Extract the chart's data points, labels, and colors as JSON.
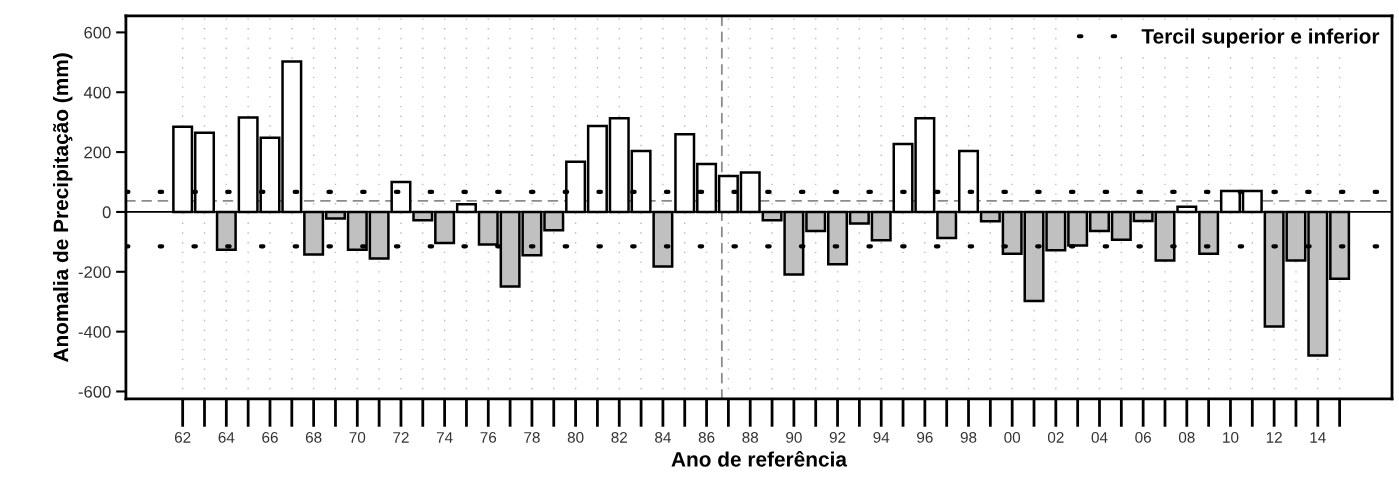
{
  "chart_data": {
    "type": "bar",
    "xlabel": "Ano de referência",
    "ylabel": "Anomalia de Precipitação (mm)",
    "x": [
      1962,
      1963,
      1964,
      1965,
      1966,
      1967,
      1968,
      1969,
      1970,
      1971,
      1972,
      1973,
      1974,
      1975,
      1976,
      1977,
      1978,
      1979,
      1980,
      1981,
      1982,
      1983,
      1984,
      1985,
      1986,
      1987,
      1988,
      1989,
      1990,
      1991,
      1992,
      1993,
      1994,
      1995,
      1996,
      1997,
      1998,
      1999,
      2000,
      2001,
      2002,
      2003,
      2004,
      2005,
      2006,
      2007,
      2008,
      2009,
      2010,
      2011,
      2012,
      2013,
      2014,
      2015
    ],
    "values": [
      285,
      265,
      -126,
      316,
      248,
      503,
      -142,
      -22,
      -126,
      -156,
      100,
      -28,
      -104,
      26,
      -109,
      -249,
      -145,
      -61,
      168,
      287,
      313,
      204,
      -182,
      260,
      160,
      120,
      132,
      -28,
      -209,
      -64,
      -175,
      -39,
      -95,
      227,
      313,
      -87,
      204,
      -31,
      -140,
      -298,
      -128,
      -112,
      -64,
      -93,
      -30,
      -162,
      17,
      -140,
      70,
      70,
      -383,
      -162,
      -480,
      -223
    ],
    "colors": [
      "#ffffff",
      "#ffffff",
      "#c0c0c0",
      "#ffffff",
      "#ffffff",
      "#ffffff",
      "#c0c0c0",
      "#c0c0c0",
      "#c0c0c0",
      "#c0c0c0",
      "#ffffff",
      "#c0c0c0",
      "#c0c0c0",
      "#ffffff",
      "#c0c0c0",
      "#c0c0c0",
      "#c0c0c0",
      "#c0c0c0",
      "#ffffff",
      "#ffffff",
      "#ffffff",
      "#ffffff",
      "#c0c0c0",
      "#ffffff",
      "#ffffff",
      "#ffffff",
      "#ffffff",
      "#c0c0c0",
      "#c0c0c0",
      "#c0c0c0",
      "#c0c0c0",
      "#c0c0c0",
      "#c0c0c0",
      "#ffffff",
      "#ffffff",
      "#c0c0c0",
      "#ffffff",
      "#c0c0c0",
      "#c0c0c0",
      "#c0c0c0",
      "#c0c0c0",
      "#c0c0c0",
      "#c0c0c0",
      "#c0c0c0",
      "#c0c0c0",
      "#c0c0c0",
      "#ffffff",
      "#c0c0c0",
      "#ffffff",
      "#ffffff",
      "#c0c0c0",
      "#c0c0c0",
      "#c0c0c0",
      "#c0c0c0"
    ],
    "xlim": [
      1959.4,
      2017.4
    ],
    "xticks": [
      {
        "value": 1962,
        "label": "62"
      },
      {
        "value": 1963,
        "label": null
      },
      {
        "value": 1964,
        "label": "64"
      },
      {
        "value": 1965,
        "label": null
      },
      {
        "value": 1966,
        "label": "66"
      },
      {
        "value": 1967,
        "label": null
      },
      {
        "value": 1968,
        "label": "68"
      },
      {
        "value": 1969,
        "label": null
      },
      {
        "value": 1970,
        "label": "70"
      },
      {
        "value": 1971,
        "label": null
      },
      {
        "value": 1972,
        "label": "72"
      },
      {
        "value": 1973,
        "label": null
      },
      {
        "value": 1974,
        "label": "74"
      },
      {
        "value": 1975,
        "label": null
      },
      {
        "value": 1976,
        "label": "76"
      },
      {
        "value": 1977,
        "label": null
      },
      {
        "value": 1978,
        "label": "78"
      },
      {
        "value": 1979,
        "label": null
      },
      {
        "value": 1980,
        "label": "80"
      },
      {
        "value": 1981,
        "label": null
      },
      {
        "value": 1982,
        "label": "82"
      },
      {
        "value": 1983,
        "label": null
      },
      {
        "value": 1984,
        "label": "84"
      },
      {
        "value": 1985,
        "label": null
      },
      {
        "value": 1986,
        "label": "86"
      },
      {
        "value": 1987,
        "label": null
      },
      {
        "value": 1988,
        "label": "88"
      },
      {
        "value": 1989,
        "label": null
      },
      {
        "value": 1990,
        "label": "90"
      },
      {
        "value": 1991,
        "label": null
      },
      {
        "value": 1992,
        "label": "92"
      },
      {
        "value": 1993,
        "label": null
      },
      {
        "value": 1994,
        "label": "94"
      },
      {
        "value": 1995,
        "label": null
      },
      {
        "value": 1996,
        "label": "96"
      },
      {
        "value": 1997,
        "label": null
      },
      {
        "value": 1998,
        "label": "98"
      },
      {
        "value": 1999,
        "label": null
      },
      {
        "value": 2000,
        "label": "00"
      },
      {
        "value": 2001,
        "label": null
      },
      {
        "value": 2002,
        "label": "02"
      },
      {
        "value": 2003,
        "label": null
      },
      {
        "value": 2004,
        "label": "04"
      },
      {
        "value": 2005,
        "label": null
      },
      {
        "value": 2006,
        "label": "06"
      },
      {
        "value": 2007,
        "label": null
      },
      {
        "value": 2008,
        "label": "08"
      },
      {
        "value": 2009,
        "label": null
      },
      {
        "value": 2010,
        "label": "10"
      },
      {
        "value": 2011,
        "label": null
      },
      {
        "value": 2012,
        "label": "12"
      },
      {
        "value": 2013,
        "label": null
      },
      {
        "value": 2014,
        "label": "14"
      },
      {
        "value": 2015,
        "label": null
      }
    ],
    "ylim": [
      -625,
      655
    ],
    "yticks": [
      -600,
      -400,
      -200,
      0,
      200,
      400,
      600
    ],
    "ref_lines": [
      {
        "axis": "y",
        "value": 67,
        "label": "Tercil superior e inferior",
        "color": "#000000",
        "line_style": "dotted"
      },
      {
        "axis": "y",
        "value": -115,
        "label": null,
        "color": "#000000",
        "line_style": "dotted"
      },
      {
        "axis": "y",
        "value": 37,
        "label": null,
        "color": "#8c8c8c",
        "line_style": "dashed"
      },
      {
        "axis": "y",
        "value": 0,
        "label": null,
        "color": "#000000",
        "line_style": "solid"
      },
      {
        "axis": "x",
        "value": 1986.7,
        "label": null,
        "color": "#8c8c8c",
        "line_style": "dashed"
      }
    ],
    "grid": "x",
    "legend": "top right"
  }
}
